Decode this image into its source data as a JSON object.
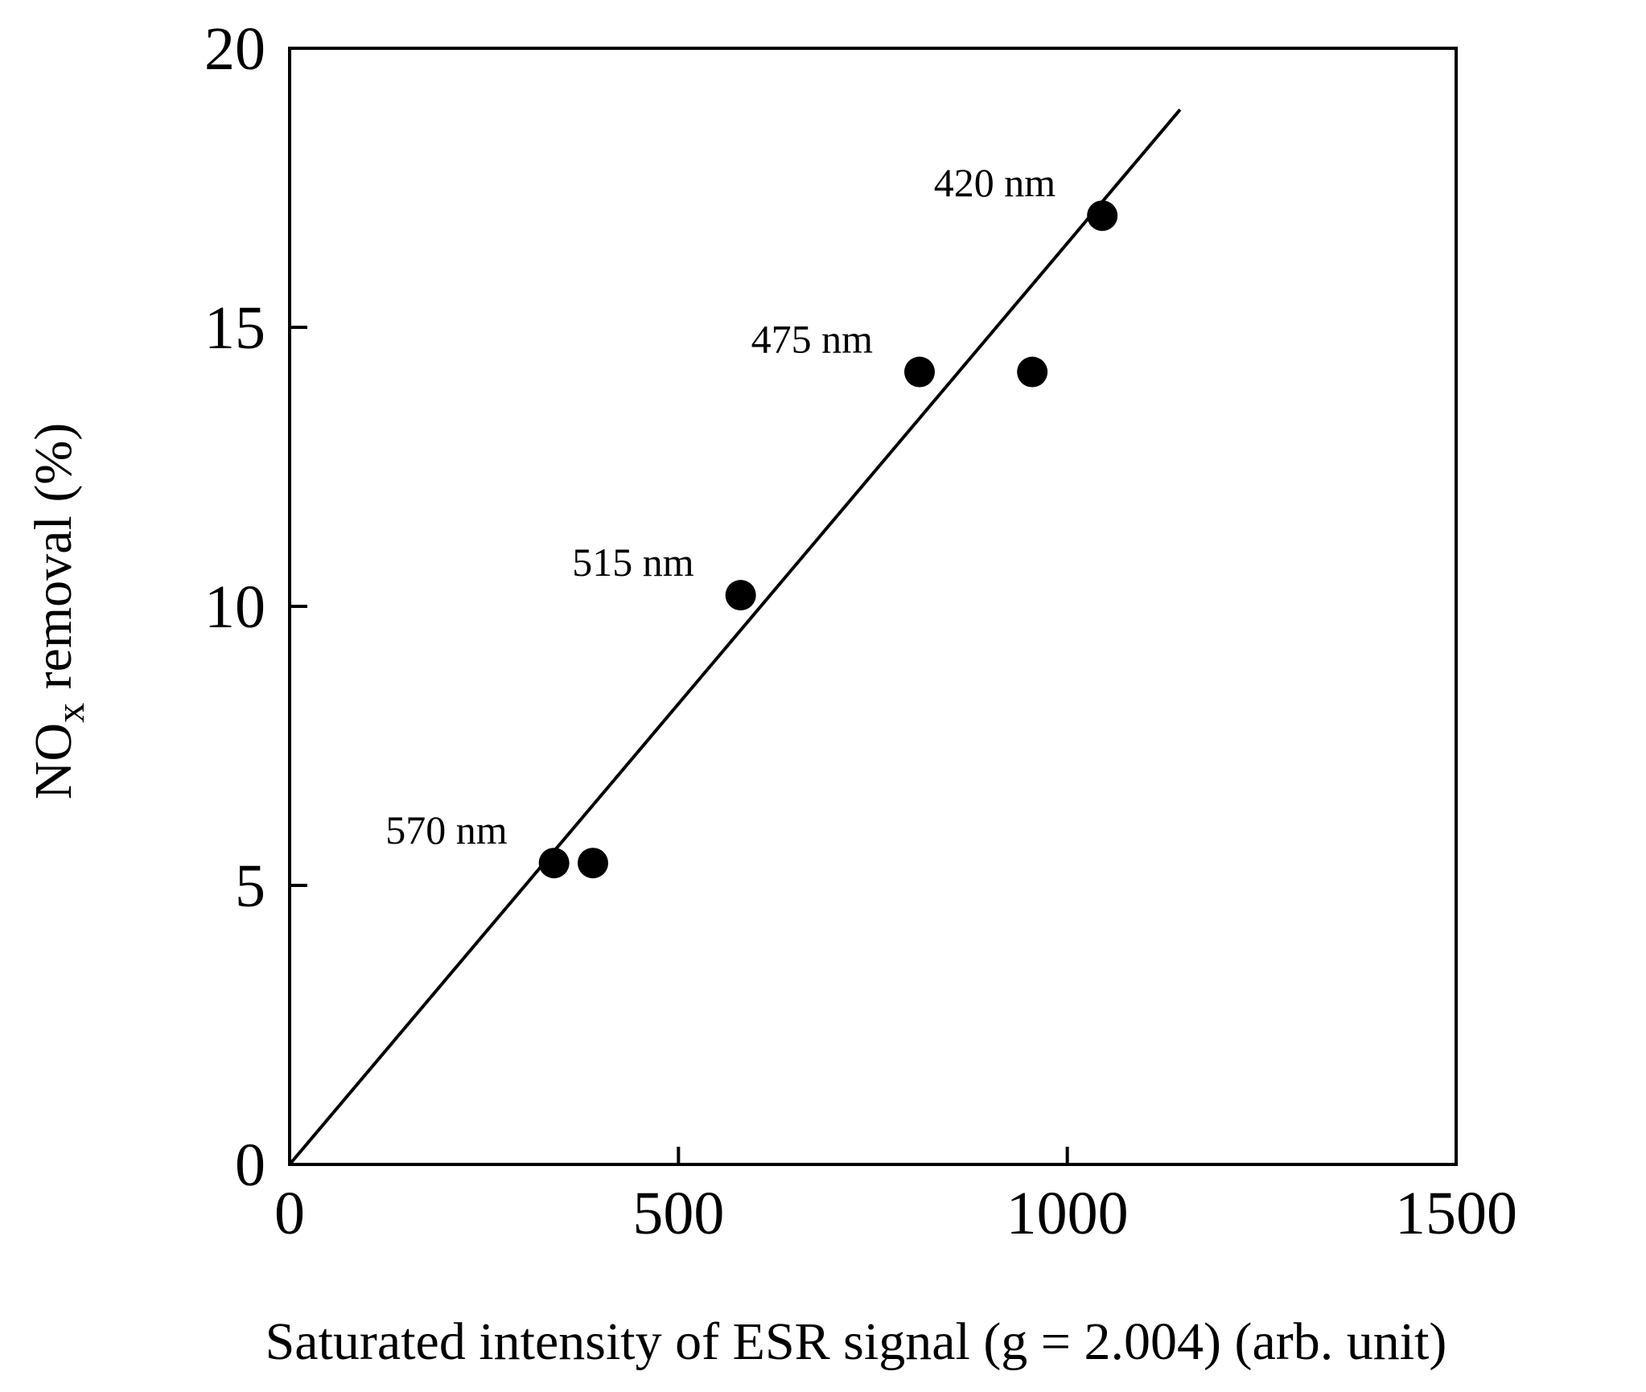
{
  "chart_data": {
    "type": "scatter",
    "title": "",
    "xlabel": "Saturated intensity of ESR signal (g = 2.004) (arb. unit)",
    "ylabel": {
      "prefix": "NO",
      "subscript": "x",
      "suffix": " removal (%)"
    },
    "xlim": [
      0,
      1500
    ],
    "ylim": [
      0,
      20
    ],
    "xticks": [
      0,
      500,
      1000,
      1500
    ],
    "yticks": [
      0,
      5,
      10,
      15,
      20
    ],
    "grid": false,
    "series": [
      {
        "name": "data",
        "points": [
          {
            "x": 340,
            "y": 5.4,
            "label": "570 nm"
          },
          {
            "x": 390,
            "y": 5.4,
            "label": ""
          },
          {
            "x": 580,
            "y": 10.2,
            "label": "515 nm"
          },
          {
            "x": 810,
            "y": 14.2,
            "label": "475 nm"
          },
          {
            "x": 955,
            "y": 14.2,
            "label": ""
          },
          {
            "x": 1045,
            "y": 17.0,
            "label": "420 nm"
          }
        ]
      }
    ],
    "fit_line": {
      "x": [
        0,
        1145
      ],
      "y": [
        0,
        18.9
      ]
    },
    "colors": {
      "ink": "#000000",
      "background": "#ffffff"
    }
  }
}
